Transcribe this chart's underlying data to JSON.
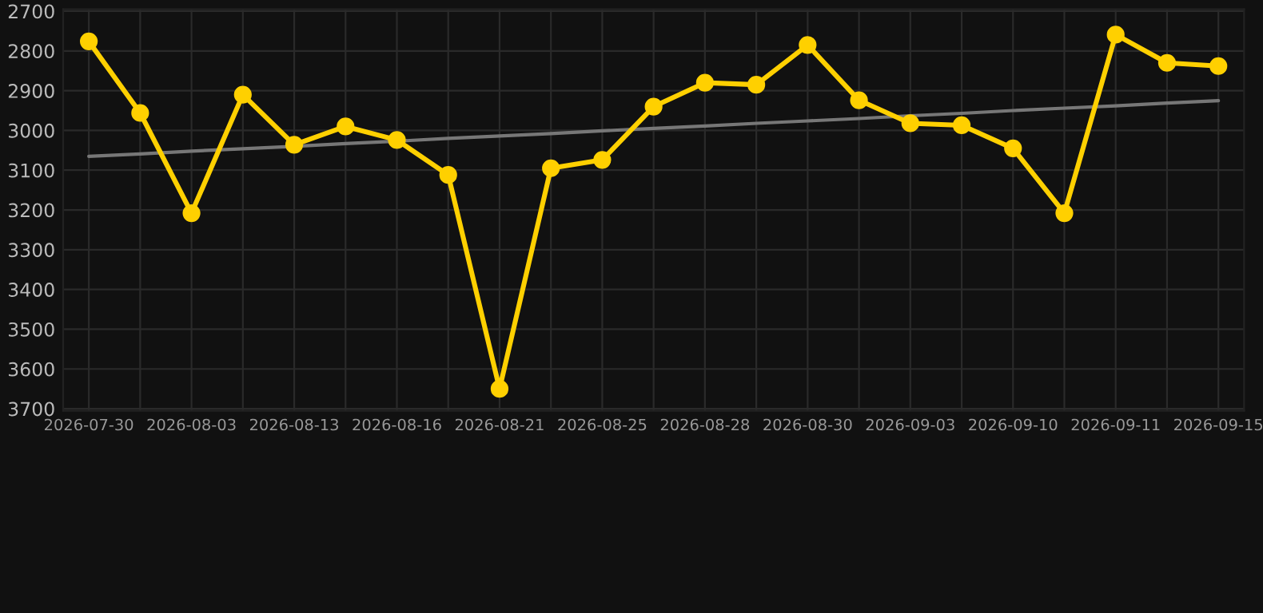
{
  "chart_data": {
    "type": "line",
    "categories": [
      "2026-07-30",
      null,
      "2026-08-03",
      null,
      "2026-08-13",
      null,
      "2026-08-16",
      null,
      "2026-08-21",
      null,
      "2026-08-25",
      null,
      "2026-08-28",
      null,
      "2026-08-30",
      null,
      "2026-09-03",
      null,
      "2026-09-10",
      null,
      "2026-09-11",
      null,
      "2026-09-15"
    ],
    "series": [
      {
        "color": "#ffd000",
        "marker": "circle",
        "values": [
          2776,
          2956,
          3208,
          2910,
          3036,
          2990,
          3024,
          3112,
          3650,
          3095,
          3074,
          2940,
          2880,
          2885,
          2785,
          2924,
          2982,
          2987,
          3045,
          3208,
          2759,
          2830,
          2838
        ]
      },
      {
        "color": "#777777",
        "marker": "none",
        "values": [
          3065,
          3059,
          3052,
          3046,
          3040,
          3033,
          3027,
          3020,
          3014,
          3008,
          3001,
          2995,
          2989,
          2982,
          2976,
          2970,
          2963,
          2957,
          2950,
          2944,
          2938,
          2931,
          2925
        ]
      }
    ],
    "ylim": [
      3705,
      2695
    ],
    "yticks": [
      2700,
      2800,
      2900,
      3000,
      3100,
      3200,
      3300,
      3400,
      3500,
      3600,
      3700
    ],
    "grid": true
  }
}
